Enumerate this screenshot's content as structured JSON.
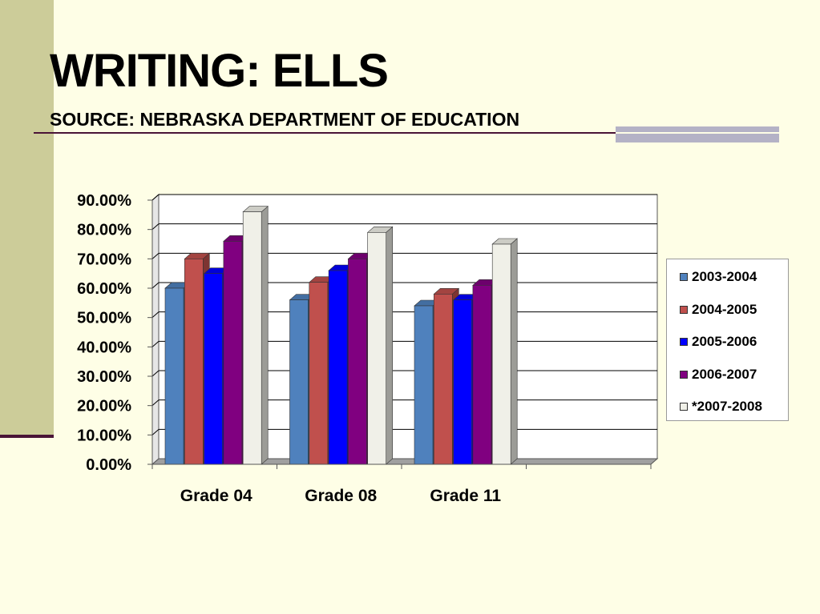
{
  "slide": {
    "title": "WRITING: ELLS",
    "subtitle": "SOURCE: NEBRASKA DEPARTMENT OF EDUCATION"
  },
  "colors": {
    "background": "#FEFEE6",
    "accent_bar": "#CCCC99",
    "rule": "#4A1437"
  },
  "chart_data": {
    "type": "bar",
    "categories": [
      "Grade 04",
      "Grade 08",
      "Grade 11"
    ],
    "y_tick_labels": [
      "0.00%",
      "10.00%",
      "20.00%",
      "30.00%",
      "40.00%",
      "50.00%",
      "60.00%",
      "70.00%",
      "80.00%",
      "90.00%"
    ],
    "ylim": [
      0,
      90
    ],
    "grid": true,
    "legend_position": "right",
    "series": [
      {
        "name": "2003-2004",
        "color": "#4F81BD",
        "values": [
          60,
          56,
          54
        ]
      },
      {
        "name": "2004-2005",
        "color": "#C0504D",
        "values": [
          70,
          62,
          58
        ]
      },
      {
        "name": "2005-2006",
        "color": "#0000FF",
        "values": [
          65,
          66,
          56
        ]
      },
      {
        "name": "2006-2007",
        "color": "#800080",
        "values": [
          76,
          70,
          61
        ]
      },
      {
        "name": "*2007-2008",
        "color": "#F0F0E8",
        "values": [
          86,
          79,
          75
        ]
      }
    ]
  }
}
